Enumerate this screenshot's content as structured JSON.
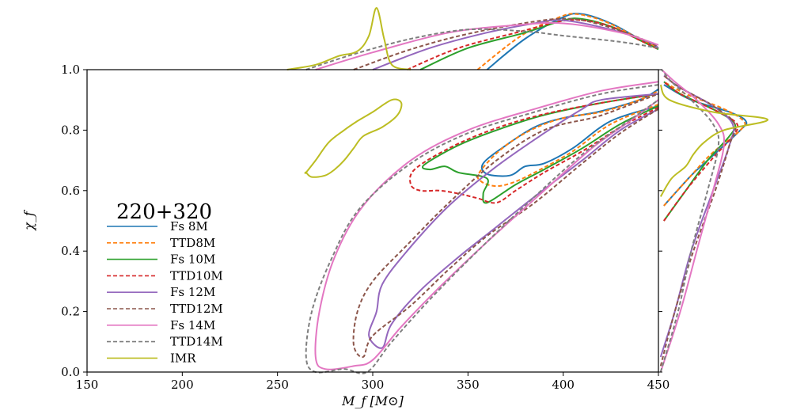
{
  "chart_data": {
    "type": "contour",
    "xlabel": "M_f [M⊙]",
    "ylabel": "χ_f",
    "xlim": [
      150,
      450
    ],
    "ylim": [
      0.0,
      1.0
    ],
    "xticks": [
      "150",
      "200",
      "250",
      "300",
      "350",
      "400",
      "450"
    ],
    "yticks": [
      "0.0",
      "0.2",
      "0.4",
      "0.6",
      "0.8",
      "1.0"
    ],
    "legend": {
      "title": "220+320",
      "placement": "center-left"
    },
    "series": [
      {
        "name": "Fs 8M",
        "color": "#1f77b4",
        "dash": "solid",
        "outer": [
          [
            450,
            0.88
          ],
          [
            425,
            0.83
          ],
          [
            405,
            0.74
          ],
          [
            390,
            0.69
          ],
          [
            380,
            0.68
          ],
          [
            372,
            0.65
          ],
          [
            360,
            0.655
          ],
          [
            358,
            0.69
          ],
          [
            370,
            0.75
          ],
          [
            385,
            0.81
          ],
          [
            400,
            0.84
          ],
          [
            418,
            0.86
          ],
          [
            440,
            0.9
          ],
          [
            450,
            0.935
          ]
        ],
        "marg_x": [
          [
            360,
            0
          ],
          [
            380,
            0.5
          ],
          [
            400,
            0.85
          ],
          [
            410,
            0.9
          ],
          [
            425,
            0.75
          ],
          [
            440,
            0.5
          ],
          [
            450,
            0.35
          ]
        ],
        "marg_y": [
          [
            0.55,
            0.05
          ],
          [
            0.65,
            0.3
          ],
          [
            0.7,
            0.45
          ],
          [
            0.8,
            0.75
          ],
          [
            0.83,
            0.8
          ],
          [
            0.86,
            0.65
          ],
          [
            0.9,
            0.3
          ],
          [
            0.95,
            0.05
          ]
        ]
      },
      {
        "name": "TTD8M",
        "color": "#ff7f0e",
        "dash": "dashed",
        "outer": [
          [
            450,
            0.885
          ],
          [
            425,
            0.82
          ],
          [
            405,
            0.73
          ],
          [
            388,
            0.67
          ],
          [
            375,
            0.63
          ],
          [
            365,
            0.615
          ],
          [
            357,
            0.63
          ],
          [
            356,
            0.66
          ],
          [
            368,
            0.74
          ],
          [
            383,
            0.8
          ],
          [
            400,
            0.84
          ],
          [
            420,
            0.86
          ],
          [
            440,
            0.9
          ],
          [
            450,
            0.93
          ]
        ],
        "marg_x": [
          [
            355,
            0
          ],
          [
            378,
            0.55
          ],
          [
            398,
            0.85
          ],
          [
            407,
            0.9
          ],
          [
            422,
            0.78
          ],
          [
            440,
            0.5
          ],
          [
            450,
            0.35
          ]
        ],
        "marg_y": [
          [
            0.55,
            0.05
          ],
          [
            0.65,
            0.3
          ],
          [
            0.72,
            0.48
          ],
          [
            0.8,
            0.75
          ],
          [
            0.83,
            0.78
          ],
          [
            0.87,
            0.6
          ],
          [
            0.92,
            0.25
          ],
          [
            0.96,
            0.05
          ]
        ]
      },
      {
        "name": "Fs 10M",
        "color": "#2ca02c",
        "dash": "solid",
        "outer": [
          [
            450,
            0.88
          ],
          [
            430,
            0.82
          ],
          [
            410,
            0.74
          ],
          [
            390,
            0.67
          ],
          [
            375,
            0.62
          ],
          [
            360,
            0.56
          ],
          [
            358,
            0.59
          ],
          [
            360,
            0.64
          ],
          [
            345,
            0.66
          ],
          [
            338,
            0.68
          ],
          [
            330,
            0.67
          ],
          [
            327,
            0.685
          ],
          [
            345,
            0.75
          ],
          [
            365,
            0.8
          ],
          [
            390,
            0.85
          ],
          [
            420,
            0.89
          ],
          [
            450,
            0.92
          ]
        ],
        "marg_x": [
          [
            325,
            0
          ],
          [
            350,
            0.35
          ],
          [
            380,
            0.6
          ],
          [
            400,
            0.8
          ],
          [
            410,
            0.82
          ],
          [
            425,
            0.7
          ],
          [
            440,
            0.48
          ],
          [
            450,
            0.33
          ]
        ],
        "marg_y": [
          [
            0.5,
            0.05
          ],
          [
            0.6,
            0.25
          ],
          [
            0.7,
            0.45
          ],
          [
            0.78,
            0.65
          ],
          [
            0.82,
            0.7
          ],
          [
            0.86,
            0.55
          ],
          [
            0.92,
            0.2
          ],
          [
            0.96,
            0.05
          ]
        ]
      },
      {
        "name": "TTD10M",
        "color": "#d62728",
        "dash": "dashed",
        "outer": [
          [
            450,
            0.875
          ],
          [
            430,
            0.81
          ],
          [
            410,
            0.73
          ],
          [
            390,
            0.66
          ],
          [
            375,
            0.6
          ],
          [
            365,
            0.56
          ],
          [
            355,
            0.575
          ],
          [
            345,
            0.59
          ],
          [
            335,
            0.6
          ],
          [
            325,
            0.6
          ],
          [
            320,
            0.62
          ],
          [
            322,
            0.67
          ],
          [
            340,
            0.74
          ],
          [
            362,
            0.8
          ],
          [
            388,
            0.85
          ],
          [
            420,
            0.89
          ],
          [
            450,
            0.92
          ]
        ],
        "marg_x": [
          [
            318,
            0
          ],
          [
            345,
            0.35
          ],
          [
            378,
            0.62
          ],
          [
            398,
            0.78
          ],
          [
            410,
            0.8
          ],
          [
            425,
            0.7
          ],
          [
            440,
            0.48
          ],
          [
            450,
            0.33
          ]
        ],
        "marg_y": [
          [
            0.5,
            0.05
          ],
          [
            0.6,
            0.25
          ],
          [
            0.7,
            0.48
          ],
          [
            0.78,
            0.68
          ],
          [
            0.82,
            0.72
          ],
          [
            0.86,
            0.55
          ],
          [
            0.92,
            0.2
          ],
          [
            0.96,
            0.05
          ]
        ]
      },
      {
        "name": "Fs 12M",
        "color": "#9467bd",
        "dash": "solid",
        "outer": [
          [
            450,
            0.87
          ],
          [
            430,
            0.8
          ],
          [
            410,
            0.7
          ],
          [
            385,
            0.58
          ],
          [
            365,
            0.48
          ],
          [
            345,
            0.38
          ],
          [
            325,
            0.27
          ],
          [
            310,
            0.16
          ],
          [
            305,
            0.08
          ],
          [
            298,
            0.12
          ],
          [
            302,
            0.2
          ],
          [
            305,
            0.29
          ],
          [
            318,
            0.4
          ],
          [
            340,
            0.55
          ],
          [
            365,
            0.68
          ],
          [
            390,
            0.79
          ],
          [
            410,
            0.87
          ],
          [
            420,
            0.9
          ],
          [
            450,
            0.92
          ]
        ],
        "marg_x": [
          [
            300,
            0
          ],
          [
            330,
            0.35
          ],
          [
            360,
            0.6
          ],
          [
            385,
            0.75
          ],
          [
            400,
            0.8
          ],
          [
            425,
            0.65
          ],
          [
            445,
            0.45
          ],
          [
            450,
            0.35
          ]
        ],
        "marg_y": [
          [
            0.05,
            0.02
          ],
          [
            0.2,
            0.15
          ],
          [
            0.4,
            0.3
          ],
          [
            0.6,
            0.5
          ],
          [
            0.75,
            0.65
          ],
          [
            0.82,
            0.68
          ],
          [
            0.88,
            0.5
          ],
          [
            0.94,
            0.2
          ],
          [
            0.98,
            0.05
          ]
        ]
      },
      {
        "name": "TTD12M",
        "color": "#8c564b",
        "dash": "dashed",
        "outer": [
          [
            450,
            0.87
          ],
          [
            430,
            0.79
          ],
          [
            410,
            0.69
          ],
          [
            385,
            0.56
          ],
          [
            360,
            0.45
          ],
          [
            340,
            0.34
          ],
          [
            320,
            0.22
          ],
          [
            300,
            0.12
          ],
          [
            295,
            0.05
          ],
          [
            290,
            0.09
          ],
          [
            292,
            0.2
          ],
          [
            300,
            0.3
          ],
          [
            318,
            0.42
          ],
          [
            340,
            0.56
          ],
          [
            365,
            0.7
          ],
          [
            390,
            0.8
          ],
          [
            415,
            0.84
          ],
          [
            425,
            0.86
          ],
          [
            450,
            0.92
          ]
        ],
        "marg_x": [
          [
            290,
            0
          ],
          [
            320,
            0.33
          ],
          [
            350,
            0.58
          ],
          [
            385,
            0.78
          ],
          [
            405,
            0.82
          ],
          [
            425,
            0.68
          ],
          [
            445,
            0.45
          ],
          [
            450,
            0.35
          ]
        ],
        "marg_y": [
          [
            0.02,
            0.02
          ],
          [
            0.2,
            0.15
          ],
          [
            0.4,
            0.32
          ],
          [
            0.6,
            0.52
          ],
          [
            0.75,
            0.65
          ],
          [
            0.82,
            0.7
          ],
          [
            0.88,
            0.5
          ],
          [
            0.94,
            0.2
          ],
          [
            0.98,
            0.05
          ]
        ]
      },
      {
        "name": "Fs 14M",
        "color": "#e377c2",
        "dash": "solid",
        "outer": [
          [
            450,
            0.96
          ],
          [
            420,
            0.93
          ],
          [
            385,
            0.87
          ],
          [
            350,
            0.8
          ],
          [
            320,
            0.7
          ],
          [
            295,
            0.55
          ],
          [
            280,
            0.38
          ],
          [
            272,
            0.2
          ],
          [
            270,
            0.05
          ],
          [
            275,
            0.01
          ],
          [
            290,
            0.02
          ],
          [
            300,
            0.04
          ],
          [
            315,
            0.15
          ],
          [
            335,
            0.28
          ],
          [
            360,
            0.43
          ],
          [
            390,
            0.6
          ],
          [
            415,
            0.74
          ],
          [
            435,
            0.83
          ],
          [
            450,
            0.9
          ]
        ],
        "marg_x": [
          [
            270,
            0
          ],
          [
            300,
            0.28
          ],
          [
            340,
            0.6
          ],
          [
            375,
            0.72
          ],
          [
            400,
            0.75
          ],
          [
            430,
            0.6
          ],
          [
            450,
            0.4
          ]
        ],
        "marg_y": [
          [
            0.0,
            0.02
          ],
          [
            0.2,
            0.2
          ],
          [
            0.4,
            0.35
          ],
          [
            0.6,
            0.5
          ],
          [
            0.75,
            0.6
          ],
          [
            0.82,
            0.55
          ],
          [
            0.9,
            0.35
          ],
          [
            0.96,
            0.15
          ],
          [
            1.0,
            0.03
          ]
        ]
      },
      {
        "name": "TTD14M",
        "color": "#7f7f7f",
        "dash": "dashed",
        "outer": [
          [
            450,
            0.95
          ],
          [
            420,
            0.92
          ],
          [
            385,
            0.86
          ],
          [
            350,
            0.79
          ],
          [
            320,
            0.69
          ],
          [
            293,
            0.54
          ],
          [
            278,
            0.37
          ],
          [
            268,
            0.2
          ],
          [
            265,
            0.05
          ],
          [
            270,
            0.0
          ],
          [
            285,
            0.01
          ],
          [
            297,
            0.0
          ],
          [
            310,
            0.1
          ],
          [
            330,
            0.24
          ],
          [
            355,
            0.4
          ],
          [
            385,
            0.58
          ],
          [
            410,
            0.72
          ],
          [
            432,
            0.82
          ],
          [
            450,
            0.9
          ]
        ],
        "marg_x": [
          [
            265,
            0
          ],
          [
            290,
            0.25
          ],
          [
            320,
            0.5
          ],
          [
            350,
            0.65
          ],
          [
            380,
            0.62
          ],
          [
            400,
            0.55
          ],
          [
            430,
            0.45
          ],
          [
            450,
            0.35
          ]
        ],
        "marg_y": [
          [
            0.0,
            0.02
          ],
          [
            0.2,
            0.18
          ],
          [
            0.4,
            0.3
          ],
          [
            0.6,
            0.45
          ],
          [
            0.75,
            0.55
          ],
          [
            0.82,
            0.5
          ],
          [
            0.9,
            0.3
          ],
          [
            0.96,
            0.12
          ],
          [
            1.0,
            0.03
          ]
        ]
      },
      {
        "name": "IMR",
        "color": "#bcbd22",
        "dash": "solid",
        "outer": [
          [
            265,
            0.66
          ],
          [
            270,
            0.7
          ],
          [
            277,
            0.76
          ],
          [
            285,
            0.8
          ],
          [
            292,
            0.83
          ],
          [
            300,
            0.86
          ],
          [
            310,
            0.9
          ],
          [
            315,
            0.89
          ],
          [
            313,
            0.85
          ],
          [
            305,
            0.81
          ],
          [
            295,
            0.78
          ],
          [
            290,
            0.74
          ],
          [
            285,
            0.7
          ],
          [
            280,
            0.67
          ],
          [
            275,
            0.65
          ],
          [
            268,
            0.645
          ],
          [
            265,
            0.66
          ]
        ],
        "marg_x": [
          [
            255,
            0
          ],
          [
            270,
            0.08
          ],
          [
            282,
            0.22
          ],
          [
            292,
            0.3
          ],
          [
            298,
            0.55
          ],
          [
            302,
            1.0
          ],
          [
            306,
            0.5
          ],
          [
            310,
            0.08
          ],
          [
            320,
            0
          ]
        ],
        "marg_y": [
          [
            0.58,
            0.02
          ],
          [
            0.64,
            0.12
          ],
          [
            0.68,
            0.25
          ],
          [
            0.72,
            0.32
          ],
          [
            0.76,
            0.42
          ],
          [
            0.8,
            0.6
          ],
          [
            0.835,
            1.0
          ],
          [
            0.86,
            0.5
          ],
          [
            0.9,
            0.1
          ],
          [
            0.95,
            0.02
          ]
        ]
      }
    ]
  }
}
